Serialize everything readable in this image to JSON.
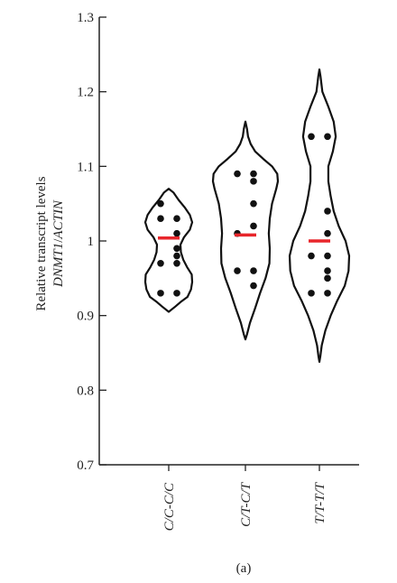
{
  "chart_data": {
    "type": "violin",
    "panel_label": "(a)",
    "ylabel_line1": "Relative transcript levels",
    "ylabel_gene": "DNMT1",
    "ylabel_sep": "/",
    "ylabel_ref": "ACTIN",
    "ylim": [
      0.7,
      1.3
    ],
    "yticks": [
      0.7,
      0.8,
      0.9,
      1.0,
      1.1,
      1.2,
      1.3
    ],
    "ytick_labels": [
      "0.7",
      "0.8",
      "0.9",
      "1",
      "1.1",
      "1.2",
      "1.3"
    ],
    "categories": [
      "C/C-C/C",
      "C/T-C/T",
      "T/T-T/T"
    ],
    "median_color": "#e8262b",
    "groups": [
      {
        "name": "C/C-C/C",
        "median": 1.004,
        "points": [
          {
            "x": -0.5,
            "y": 1.05
          },
          {
            "x": -0.5,
            "y": 1.03
          },
          {
            "x": 0.5,
            "y": 1.03
          },
          {
            "x": 0.5,
            "y": 1.01
          },
          {
            "x": 0.5,
            "y": 0.99
          },
          {
            "x": 0.5,
            "y": 0.98
          },
          {
            "x": -0.5,
            "y": 0.97
          },
          {
            "x": 0.5,
            "y": 0.97
          },
          {
            "x": -0.5,
            "y": 0.93
          },
          {
            "x": 0.5,
            "y": 0.93
          }
        ],
        "violin": [
          [
            1.07,
            0
          ],
          [
            1.065,
            0.2
          ],
          [
            1.055,
            0.42
          ],
          [
            1.045,
            0.68
          ],
          [
            1.035,
            0.9
          ],
          [
            1.025,
            1.0
          ],
          [
            1.015,
            0.9
          ],
          [
            1.005,
            0.65
          ],
          [
            0.995,
            0.5
          ],
          [
            0.985,
            0.52
          ],
          [
            0.975,
            0.62
          ],
          [
            0.965,
            0.78
          ],
          [
            0.955,
            0.98
          ],
          [
            0.945,
            1.0
          ],
          [
            0.935,
            0.95
          ],
          [
            0.925,
            0.8
          ],
          [
            0.918,
            0.5
          ],
          [
            0.912,
            0.28
          ],
          [
            0.905,
            0
          ]
        ]
      },
      {
        "name": "C/T-C/T",
        "median": 1.008,
        "points": [
          {
            "x": -0.5,
            "y": 1.09
          },
          {
            "x": 0.5,
            "y": 1.09
          },
          {
            "x": 0.5,
            "y": 1.08
          },
          {
            "x": 0.5,
            "y": 1.05
          },
          {
            "x": 0.5,
            "y": 1.02
          },
          {
            "x": -0.5,
            "y": 1.01
          },
          {
            "x": -0.5,
            "y": 0.96
          },
          {
            "x": 0.5,
            "y": 0.96
          },
          {
            "x": 0.5,
            "y": 0.94
          }
        ],
        "violin": [
          [
            1.16,
            0
          ],
          [
            1.15,
            0.05
          ],
          [
            1.14,
            0.08
          ],
          [
            1.13,
            0.16
          ],
          [
            1.12,
            0.3
          ],
          [
            1.11,
            0.55
          ],
          [
            1.1,
            0.82
          ],
          [
            1.09,
            0.98
          ],
          [
            1.08,
            1.0
          ],
          [
            1.07,
            0.95
          ],
          [
            1.05,
            0.82
          ],
          [
            1.03,
            0.75
          ],
          [
            1.01,
            0.72
          ],
          [
            0.99,
            0.75
          ],
          [
            0.97,
            0.74
          ],
          [
            0.95,
            0.62
          ],
          [
            0.93,
            0.45
          ],
          [
            0.91,
            0.3
          ],
          [
            0.89,
            0.14
          ],
          [
            0.875,
            0.05
          ],
          [
            0.868,
            0
          ]
        ]
      },
      {
        "name": "T/T-T/T",
        "median": 1.0,
        "points": [
          {
            "x": -0.5,
            "y": 1.14
          },
          {
            "x": 0.5,
            "y": 1.14
          },
          {
            "x": 0.5,
            "y": 1.04
          },
          {
            "x": 0.5,
            "y": 1.01
          },
          {
            "x": -0.5,
            "y": 0.98
          },
          {
            "x": 0.5,
            "y": 0.98
          },
          {
            "x": 0.5,
            "y": 0.96
          },
          {
            "x": 0.5,
            "y": 0.95
          },
          {
            "x": -0.5,
            "y": 0.93
          },
          {
            "x": 0.5,
            "y": 0.93
          }
        ],
        "violin": [
          [
            1.23,
            0
          ],
          [
            1.22,
            0.04
          ],
          [
            1.2,
            0.1
          ],
          [
            1.18,
            0.3
          ],
          [
            1.16,
            0.48
          ],
          [
            1.14,
            0.55
          ],
          [
            1.12,
            0.45
          ],
          [
            1.1,
            0.3
          ],
          [
            1.08,
            0.3
          ],
          [
            1.06,
            0.38
          ],
          [
            1.04,
            0.48
          ],
          [
            1.02,
            0.65
          ],
          [
            1.0,
            0.88
          ],
          [
            0.98,
            1.0
          ],
          [
            0.96,
            0.98
          ],
          [
            0.94,
            0.85
          ],
          [
            0.92,
            0.6
          ],
          [
            0.9,
            0.38
          ],
          [
            0.88,
            0.2
          ],
          [
            0.86,
            0.08
          ],
          [
            0.845,
            0.03
          ],
          [
            0.838,
            0
          ]
        ]
      }
    ]
  }
}
